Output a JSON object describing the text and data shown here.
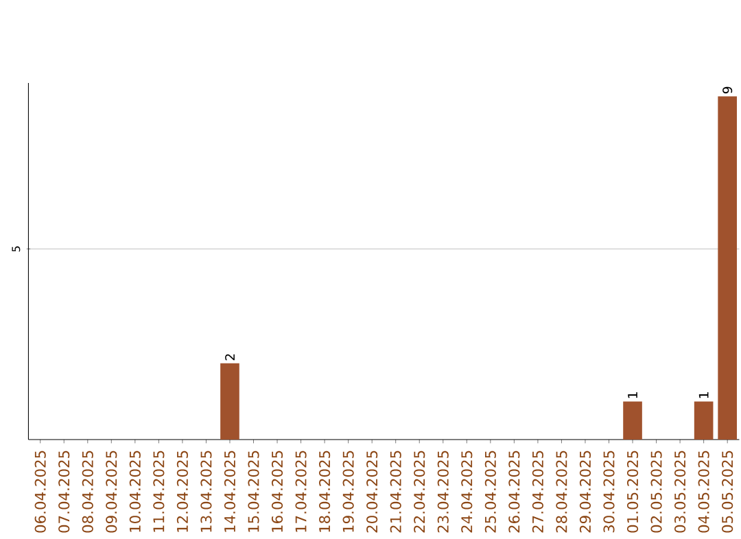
{
  "chart_data": {
    "type": "bar",
    "categories": [
      "06.04.2025",
      "07.04.2025",
      "08.04.2025",
      "09.04.2025",
      "10.04.2025",
      "11.04.2025",
      "12.04.2025",
      "13.04.2025",
      "14.04.2025",
      "15.04.2025",
      "16.04.2025",
      "17.04.2025",
      "18.04.2025",
      "19.04.2025",
      "20.04.2025",
      "21.04.2025",
      "22.04.2025",
      "23.04.2025",
      "24.04.2025",
      "25.04.2025",
      "26.04.2025",
      "27.04.2025",
      "28.04.2025",
      "29.04.2025",
      "30.04.2025",
      "01.05.2025",
      "02.05.2025",
      "03.05.2025",
      "04.05.2025",
      "05.05.2025"
    ],
    "values": [
      0,
      0,
      0,
      0,
      0,
      0,
      0,
      0,
      2,
      0,
      0,
      0,
      0,
      0,
      0,
      0,
      0,
      0,
      0,
      0,
      0,
      0,
      0,
      0,
      0,
      1,
      0,
      0,
      1,
      9
    ],
    "value_labels": [
      null,
      null,
      null,
      null,
      null,
      null,
      null,
      null,
      "2",
      null,
      null,
      null,
      null,
      null,
      null,
      null,
      null,
      null,
      null,
      null,
      null,
      null,
      null,
      null,
      null,
      "1",
      null,
      null,
      "1",
      "9"
    ],
    "color": "#a0522d",
    "ylim": [
      0,
      9.35
    ],
    "yticks": [
      5
    ],
    "grid": "y"
  }
}
